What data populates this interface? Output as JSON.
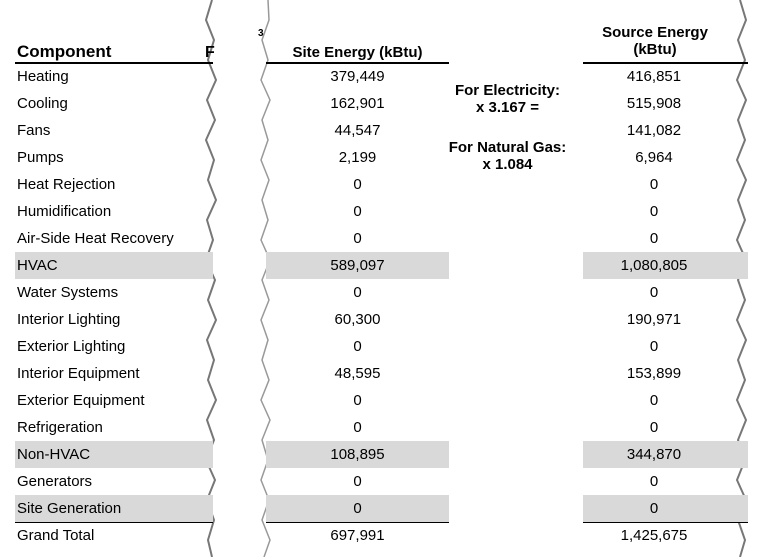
{
  "headers": {
    "component": "Component",
    "fragment": "F",
    "fragment_small": "3",
    "site_energy": "Site Energy (kBtu)",
    "source_energy_line1": "Source Energy",
    "source_energy_line2": "(kBtu)"
  },
  "conversion": {
    "electricity_label": "For Electricity:",
    "electricity_factor": "x 3.167 =",
    "gas_label": "For Natural Gas:",
    "gas_factor": "x 1.084"
  },
  "rows": [
    {
      "name": "Heating",
      "site": "379,449",
      "source": "416,851",
      "shaded": false
    },
    {
      "name": "Cooling",
      "site": "162,901",
      "source": "515,908",
      "shaded": false
    },
    {
      "name": "Fans",
      "site": "44,547",
      "source": "141,082",
      "shaded": false
    },
    {
      "name": "Pumps",
      "site": "2,199",
      "source": "6,964",
      "shaded": false
    },
    {
      "name": "Heat Rejection",
      "site": "0",
      "source": "0",
      "shaded": false
    },
    {
      "name": "Humidification",
      "site": "0",
      "source": "0",
      "shaded": false
    },
    {
      "name": "Air-Side Heat Recovery",
      "site": "0",
      "source": "0",
      "shaded": false
    },
    {
      "name": "HVAC",
      "site": "589,097",
      "source": "1,080,805",
      "shaded": true
    },
    {
      "name": "Water Systems",
      "site": "0",
      "source": "0",
      "shaded": false
    },
    {
      "name": "Interior Lighting",
      "site": "60,300",
      "source": "190,971",
      "shaded": false
    },
    {
      "name": "Exterior Lighting",
      "site": "0",
      "source": "0",
      "shaded": false
    },
    {
      "name": "Interior Equipment",
      "site": "48,595",
      "source": "153,899",
      "shaded": false
    },
    {
      "name": "Exterior Equipment",
      "site": "0",
      "source": "0",
      "shaded": false
    },
    {
      "name": "Refrigeration",
      "site": "0",
      "source": "0",
      "shaded": false
    },
    {
      "name": "Non-HVAC",
      "site": "108,895",
      "source": "344,870",
      "shaded": true
    },
    {
      "name": "Generators",
      "site": "0",
      "source": "0",
      "shaded": false
    },
    {
      "name": "Site Generation",
      "site": "0",
      "source": "0",
      "shaded": true
    },
    {
      "name": "Grand Total",
      "site": "697,991",
      "source": "1,425,675",
      "shaded": false
    }
  ]
}
